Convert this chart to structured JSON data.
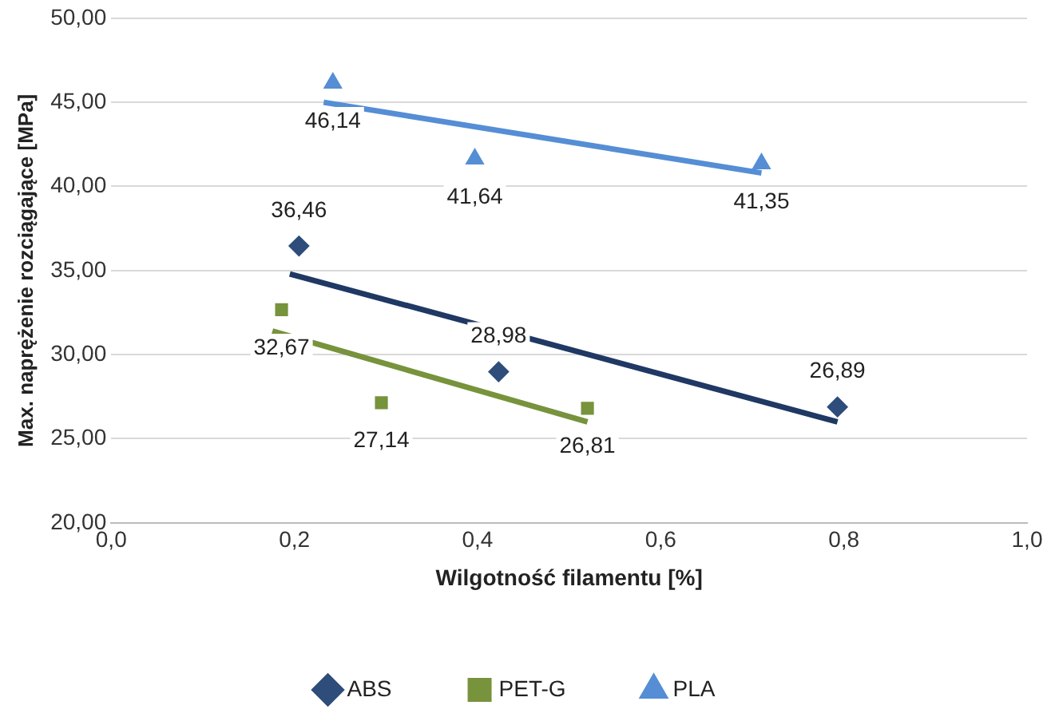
{
  "chart_data": {
    "type": "scatter",
    "xlabel": "Wilgotność filamentu [%]",
    "ylabel": "Max. naprężenie rozciągające [MPa]",
    "xlim": [
      0,
      1
    ],
    "xticks": [
      {
        "value": 0,
        "label": "0,0"
      },
      {
        "value": 0.2,
        "label": "0,2"
      },
      {
        "value": 0.4,
        "label": "0,4"
      },
      {
        "value": 0.6,
        "label": "0,6"
      },
      {
        "value": 0.8,
        "label": "0,8"
      },
      {
        "value": 1,
        "label": "1,0"
      }
    ],
    "ylim": [
      20,
      50
    ],
    "yticks": [
      {
        "value": 20,
        "label": "20,00"
      },
      {
        "value": 25,
        "label": "25,00"
      },
      {
        "value": 30,
        "label": "30,00"
      },
      {
        "value": 35,
        "label": "35,00"
      },
      {
        "value": 40,
        "label": "40,00"
      },
      {
        "value": 45,
        "label": "45,00"
      },
      {
        "value": 50,
        "label": "50,00"
      }
    ],
    "grid": "y",
    "legend": "bottom",
    "series": [
      {
        "name": "ABS",
        "type": "scatter",
        "marker": "diamond",
        "color": "#2e4d7b",
        "x": [
          0.205,
          0.423,
          0.793
        ],
        "values": [
          36.46,
          28.98,
          26.89
        ],
        "value_labels": [
          "36,46",
          "28,98",
          "26,89"
        ]
      },
      {
        "name": "PET-G",
        "type": "scatter",
        "marker": "square",
        "color": "#77933c",
        "x": [
          0.186,
          0.295,
          0.52
        ],
        "values": [
          32.67,
          27.14,
          26.81
        ],
        "value_labels": [
          "32,67",
          "27,14",
          "26,81"
        ]
      },
      {
        "name": "PLA",
        "type": "scatter",
        "marker": "triangle",
        "color": "#558ed5",
        "x": [
          0.242,
          0.397,
          0.71
        ],
        "values": [
          46.14,
          41.64,
          41.35
        ],
        "value_labels": [
          "46,14",
          "41,64",
          "41,35"
        ]
      },
      {
        "type": "line",
        "color": "#1f3864",
        "x": [
          0.195,
          0.793
        ],
        "values": [
          34.8,
          26.0
        ]
      },
      {
        "type": "line",
        "color": "#77933c",
        "x": [
          0.176,
          0.52
        ],
        "values": [
          31.4,
          26.0
        ]
      },
      {
        "type": "line",
        "color": "#558ed5",
        "x": [
          0.232,
          0.71
        ],
        "values": [
          45.0,
          40.8
        ]
      }
    ]
  }
}
